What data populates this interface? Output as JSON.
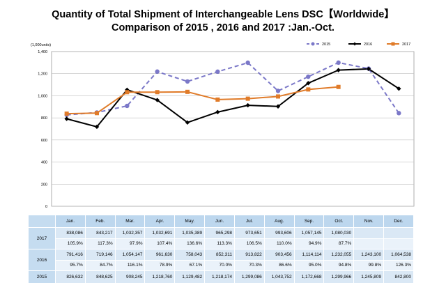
{
  "title_line1": "Quantity of Total Shipment of Interchangeable Lens DSC【Worldwide】",
  "title_line2": "Comparison of 2015 , 2016 and 2017 :Jan.-Oct.",
  "chart_data": {
    "type": "line",
    "unit_label": "(1,000units)",
    "ylim": [
      0,
      1400
    ],
    "y_ticks": [
      0,
      200,
      400,
      600,
      800,
      1000,
      1200,
      1400
    ],
    "categories": [
      "Jan.",
      "Feb.",
      "Mar.",
      "Apr.",
      "May.",
      "Jun.",
      "Jul.",
      "Aug.",
      "Sep.",
      "Oct.",
      "Nov.",
      "Dec."
    ],
    "legend_position": "top-right",
    "grid": true,
    "series": [
      {
        "name": "2015",
        "color": "#7b78c8",
        "dashed": true,
        "marker": "circle",
        "values": [
          826.632,
          848.625,
          908.245,
          1218.76,
          1129.482,
          1218.174,
          1299.086,
          1043.752,
          1172.668,
          1299.966,
          1245.809,
          842.8
        ]
      },
      {
        "name": "2016",
        "color": "#000000",
        "dashed": false,
        "marker": "diamond",
        "values": [
          791.416,
          719.146,
          1054.147,
          961.63,
          758.043,
          852.311,
          913.822,
          903.456,
          1114.114,
          1232.055,
          1243.1,
          1064.538
        ]
      },
      {
        "name": "2017",
        "color": "#e07b29",
        "dashed": false,
        "marker": "square",
        "values": [
          838.086,
          843.217,
          1032.357,
          1032.691,
          1035.389,
          965.298,
          973.651,
          993.606,
          1057.145,
          1080.03,
          null,
          null
        ]
      }
    ]
  },
  "table": {
    "months": [
      "Jan.",
      "Feb.",
      "Mar.",
      "Apr.",
      "May.",
      "Jun.",
      "Jul.",
      "Aug.",
      "Sep.",
      "Oct.",
      "Nov.",
      "Dec."
    ],
    "rows": [
      {
        "year": "2017",
        "values": [
          "838,086",
          "843,217",
          "1,032,357",
          "1,032,691",
          "1,035,389",
          "965,298",
          "973,651",
          "993,606",
          "1,057,145",
          "1,080,030",
          "",
          ""
        ],
        "ratios": [
          "105.9%",
          "117.3%",
          "97.9%",
          "107.4%",
          "136.6%",
          "113.3%",
          "106.5%",
          "110.0%",
          "94.9%",
          "87.7%",
          "",
          ""
        ]
      },
      {
        "year": "2016",
        "values": [
          "791,416",
          "719,146",
          "1,054,147",
          "961,630",
          "758,043",
          "852,311",
          "913,822",
          "903,456",
          "1,114,114",
          "1,232,055",
          "1,243,100",
          "1,064,538"
        ],
        "ratios": [
          "95.7%",
          "84.7%",
          "116.1%",
          "78.9%",
          "67.1%",
          "70.0%",
          "70.3%",
          "86.6%",
          "95.0%",
          "94.8%",
          "99.8%",
          "126.3%"
        ]
      },
      {
        "year": "2015",
        "values": [
          "826,632",
          "848,625",
          "908,245",
          "1,218,760",
          "1,129,482",
          "1,218,174",
          "1,299,086",
          "1,043,752",
          "1,172,668",
          "1,299,966",
          "1,245,809",
          "842,800"
        ]
      }
    ]
  }
}
